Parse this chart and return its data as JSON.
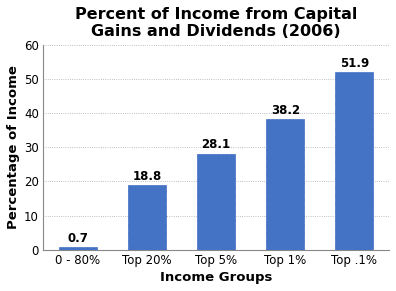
{
  "categories": [
    "0 - 80%",
    "Top 20%",
    "Top 5%",
    "Top 1%",
    "Top .1%"
  ],
  "values": [
    0.7,
    18.8,
    28.1,
    38.2,
    51.9
  ],
  "bar_color": "#4472C4",
  "title_line1": "Percent of Income from Capital",
  "title_line2": "Gains and Dividends (2006)",
  "xlabel": "Income Groups",
  "ylabel": "Percentage of Income",
  "ylim": [
    0,
    60
  ],
  "yticks": [
    0,
    10,
    20,
    30,
    40,
    50,
    60
  ],
  "title_fontsize": 11.5,
  "label_fontsize": 9.5,
  "tick_fontsize": 8.5,
  "bar_label_fontsize": 8.5,
  "background_color": "#ffffff",
  "grid_color": "#aaaaaa",
  "spine_color": "#888888"
}
